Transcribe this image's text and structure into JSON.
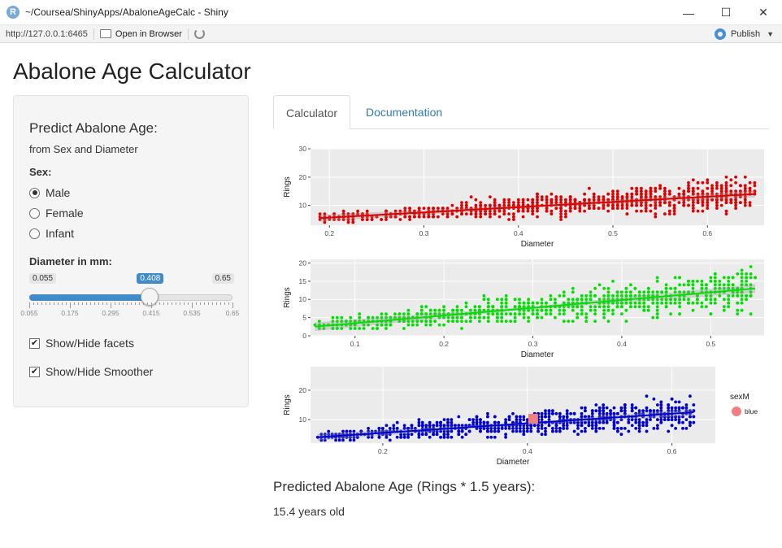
{
  "window": {
    "title": "~/Coursea/ShinyApps/AbaloneAgeCalc - Shiny",
    "controls": [
      "—",
      "☐",
      "✕"
    ]
  },
  "toolbar": {
    "url": "http://127.0.0.1:6465",
    "open_browser": "Open in Browser",
    "publish": "Publish"
  },
  "page": {
    "title": "Abalone Age Calculator"
  },
  "sidebar": {
    "heading": "Predict Abalone Age:",
    "subheading": "from Sex and Diameter",
    "sex_label": "Sex:",
    "sex_options": [
      {
        "label": "Male",
        "checked": true
      },
      {
        "label": "Female",
        "checked": false
      },
      {
        "label": "Infant",
        "checked": false
      }
    ],
    "diameter_label": "Diameter in mm:",
    "slider": {
      "min": 0.055,
      "max": 0.65,
      "value": 0.408,
      "min_label": "0.055",
      "max_label": "0.65",
      "value_label": "0.408",
      "tick_labels": [
        "0.055",
        "0.175",
        "0.295",
        "0.415",
        "0.535",
        "0.65"
      ]
    },
    "checkboxes": [
      {
        "label": "Show/Hide facets",
        "checked": true
      },
      {
        "label": "Show/Hide Smoother",
        "checked": true
      }
    ]
  },
  "tabs": [
    {
      "label": "Calculator",
      "active": true
    },
    {
      "label": "Documentation",
      "active": false
    }
  ],
  "chart_data": [
    {
      "type": "scatter",
      "color": "#e00000",
      "xlabel": "Diameter",
      "ylabel": "Rings",
      "xlim": [
        0.18,
        0.66
      ],
      "ylim": [
        3,
        30
      ],
      "xticks": [
        0.2,
        0.3,
        0.4,
        0.5,
        0.6
      ],
      "xtick_labels": [
        "0.2",
        "0.3",
        "0.4",
        "0.5",
        "0.6"
      ],
      "yticks": [
        10,
        20,
        30
      ],
      "ytick_labels": [
        "10",
        "20",
        "30"
      ],
      "x_range": [
        0.19,
        0.65
      ],
      "smoother": {
        "x": [
          0.19,
          0.65
        ],
        "y": [
          5.5,
          14.0
        ]
      },
      "grid": true
    },
    {
      "type": "scatter",
      "color": "#00e000",
      "xlabel": "Diameter",
      "ylabel": "Rings",
      "xlim": [
        0.05,
        0.56
      ],
      "ylim": [
        0,
        21
      ],
      "xticks": [
        0.1,
        0.2,
        0.3,
        0.4,
        0.5
      ],
      "xtick_labels": [
        "0.1",
        "0.2",
        "0.3",
        "0.4",
        "0.5"
      ],
      "yticks": [
        0,
        5,
        10,
        15,
        20
      ],
      "ytick_labels": [
        "0",
        "5",
        "10",
        "15",
        "20"
      ],
      "x_range": [
        0.055,
        0.55
      ],
      "smoother": {
        "x": [
          0.055,
          0.55
        ],
        "y": [
          2.5,
          13.0
        ]
      },
      "grid": true
    },
    {
      "type": "scatter",
      "color": "#0000d0",
      "xlabel": "Diameter",
      "ylabel": "Rings",
      "xlim": [
        0.1,
        0.66
      ],
      "ylim": [
        2,
        28
      ],
      "xticks": [
        0.2,
        0.4,
        0.6
      ],
      "xtick_labels": [
        "0.2",
        "0.4",
        "0.6"
      ],
      "yticks": [
        10,
        20
      ],
      "ytick_labels": [
        "10",
        "20"
      ],
      "x_range": [
        0.11,
        0.63
      ],
      "smoother": {
        "x": [
          0.11,
          0.63
        ],
        "y": [
          4.0,
          12.5
        ]
      },
      "highlight": {
        "x": 0.408,
        "y": 10.3,
        "color": "#f08080"
      },
      "legend": {
        "title": "sexM",
        "label": "blue",
        "position": "right"
      },
      "grid": true
    }
  ],
  "result": {
    "heading": "Predicted Abalone Age (Rings * 1.5 years):",
    "value": "15.4 years old"
  }
}
